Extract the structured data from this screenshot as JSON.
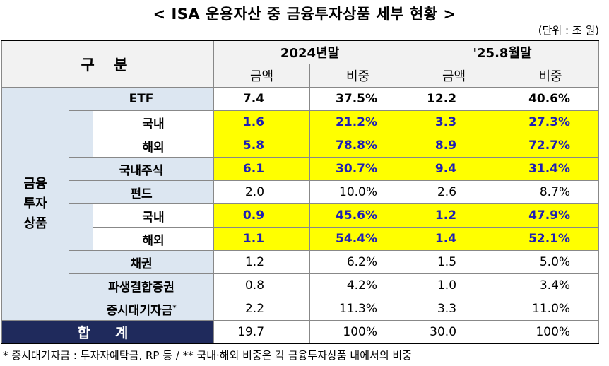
{
  "title": "< ISA 운용자산 중 금융투자상품 세부 현황 >",
  "unit": "(단위 : 조 원)",
  "header": {
    "category": "구 분",
    "period1": "2024년말",
    "period2": "'25.8월말",
    "amount": "금액",
    "ratio": "비중"
  },
  "group_label": [
    "금융",
    "투자",
    "상품"
  ],
  "rows": [
    {
      "label": "ETF",
      "a1": "7.4",
      "r1": "37.5%",
      "a2": "12.2",
      "r2": "40.6%"
    },
    {
      "label": "국내",
      "a1": "1.6",
      "r1": "21.2%",
      "a2": "3.3",
      "r2": "27.3%"
    },
    {
      "label": "해외",
      "a1": "5.8",
      "r1": "78.8%",
      "a2": "8.9",
      "r2": "72.7%"
    },
    {
      "label": "국내주식",
      "a1": "6.1",
      "r1": "30.7%",
      "a2": "9.4",
      "r2": "31.4%"
    },
    {
      "label": "펀드",
      "a1": "2.0",
      "r1": "10.0%",
      "a2": "2.6",
      "r2": "8.7%"
    },
    {
      "label": "국내",
      "a1": "0.9",
      "r1": "45.6%",
      "a2": "1.2",
      "r2": "47.9%"
    },
    {
      "label": "해외",
      "a1": "1.1",
      "r1": "54.4%",
      "a2": "1.4",
      "r2": "52.1%"
    },
    {
      "label": "채권",
      "a1": "1.2",
      "r1": "6.2%",
      "a2": "1.5",
      "r2": "5.0%"
    },
    {
      "label": "파생결합증권",
      "a1": "0.8",
      "r1": "4.2%",
      "a2": "1.0",
      "r2": "3.4%"
    },
    {
      "label": "증시대기자금",
      "sup": "*",
      "a1": "2.2",
      "r1": "11.3%",
      "a2": "3.3",
      "r2": "11.0%"
    }
  ],
  "total": {
    "label": "합 계",
    "a1": "19.7",
    "r1": "100%",
    "a2": "30.0",
    "r2": "100%"
  },
  "footnote": "* 증시대기자금 : 투자자예탁금, RP 등  /  ** 국내·해외 비중은 각 금융투자상품 내에서의 비중",
  "colors": {
    "highlight": "#ffff00",
    "highlight_text": "#1f1fb4",
    "total_bg": "#1f2a5c",
    "group_bg": "#dce6f1"
  }
}
